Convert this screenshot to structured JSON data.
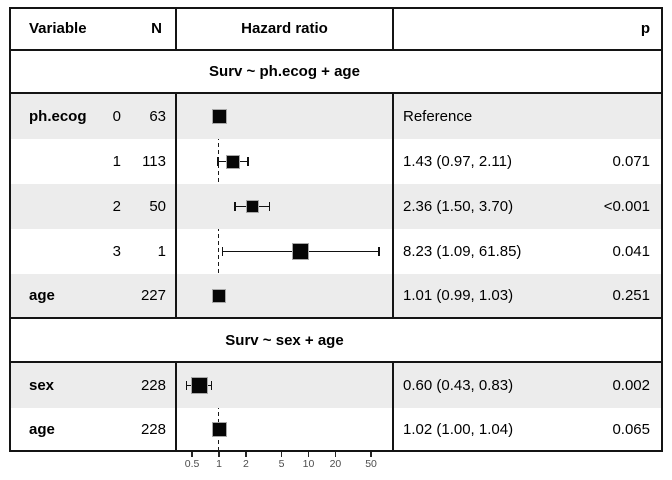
{
  "colors": {
    "row_stripe": "#ececec",
    "border": "#141414",
    "marker": "#000000",
    "axis_text": "#4d4d4d",
    "background": "#ffffff"
  },
  "header": {
    "variable": "Variable",
    "n": "N",
    "hazard_ratio": "Hazard ratio",
    "p": "p"
  },
  "chart_data": {
    "type": "scatter",
    "variant": "forest-plot",
    "title": "",
    "xlabel": "",
    "x_scale": "log10",
    "xlim": [
      0.42,
      65
    ],
    "reference_line_x": 1,
    "x_ticks": [
      0.5,
      1,
      2,
      5,
      10,
      20,
      50
    ],
    "x_tick_labels": [
      "0.5",
      "1",
      "2",
      "5",
      "10",
      "20",
      "50"
    ],
    "legend": "none",
    "grid": "off",
    "sections": [
      {
        "title": "Surv ~ ph.ecog + age",
        "row_indexes": [
          0,
          1,
          2,
          3,
          4
        ]
      },
      {
        "title": "Surv ~ sex + age",
        "row_indexes": [
          5,
          6
        ]
      }
    ],
    "rows": [
      {
        "variable": "ph.ecog",
        "level": "0",
        "n": "63",
        "hr": 1.0,
        "reference": true,
        "estimate_label": "Reference",
        "p": "",
        "box_size": 15
      },
      {
        "variable": "",
        "level": "1",
        "n": "113",
        "hr": 1.43,
        "ci_low": 0.97,
        "ci_high": 2.11,
        "estimate_label": "1.43 (0.97, 2.11)",
        "p": "0.071",
        "box_size": 14
      },
      {
        "variable": "",
        "level": "2",
        "n": "50",
        "hr": 2.36,
        "ci_low": 1.5,
        "ci_high": 3.7,
        "estimate_label": "2.36 (1.50, 3.70)",
        "p": "<0.001",
        "box_size": 13
      },
      {
        "variable": "",
        "level": "3",
        "n": "1",
        "hr": 8.23,
        "ci_low": 1.09,
        "ci_high": 61.85,
        "estimate_label": "8.23 (1.09, 61.85)",
        "p": "0.041",
        "box_size": 17
      },
      {
        "variable": "age",
        "level": "",
        "n": "227",
        "hr": 1.01,
        "ci_low": 0.99,
        "ci_high": 1.03,
        "estimate_label": "1.01 (0.99, 1.03)",
        "p": "0.251",
        "box_size": 14
      },
      {
        "variable": "sex",
        "level": "",
        "n": "228",
        "hr": 0.6,
        "ci_low": 0.43,
        "ci_high": 0.83,
        "estimate_label": "0.60 (0.43, 0.83)",
        "p": "0.002",
        "box_size": 17
      },
      {
        "variable": "age",
        "level": "",
        "n": "228",
        "hr": 1.02,
        "ci_low": 1.0,
        "ci_high": 1.04,
        "estimate_label": "1.02 (1.00, 1.04)",
        "p": "0.065",
        "box_size": 15
      }
    ]
  }
}
